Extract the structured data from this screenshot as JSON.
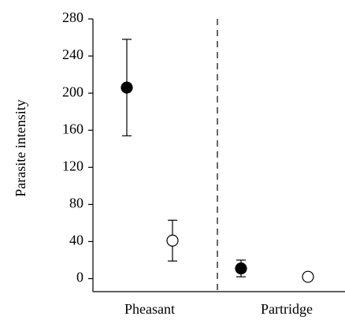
{
  "chart_data": {
    "type": "errorbar",
    "y_label": "Parasite intensity",
    "categories": [
      "Pheasant",
      "Partridge"
    ],
    "series": [
      {
        "marker": "filled",
        "color": "#000000",
        "values": [
          206,
          11
        ],
        "errors": [
          52,
          9
        ]
      },
      {
        "marker": "open",
        "color": "#000000",
        "values": [
          41,
          2
        ],
        "errors": [
          22,
          null
        ]
      }
    ],
    "ylim": [
      -14,
      280
    ],
    "yticks": [
      0,
      40,
      80,
      120,
      160,
      200,
      240,
      280
    ]
  }
}
